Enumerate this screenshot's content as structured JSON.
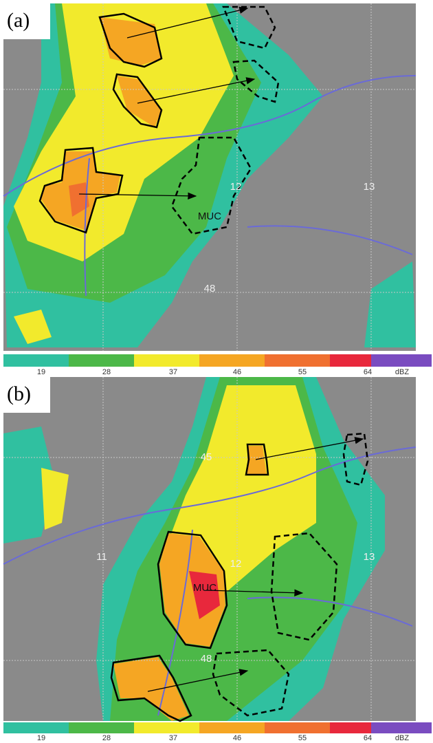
{
  "panels": [
    {
      "label": "(a)",
      "map_labels": [
        "12",
        "13",
        "48",
        "MUC"
      ]
    },
    {
      "label": "(b)",
      "map_labels": [
        "45",
        "11",
        "12",
        "13",
        "MUC",
        "48"
      ]
    }
  ],
  "colorbar": {
    "ticks": [
      "19",
      "28",
      "37",
      "46",
      "55",
      "64"
    ],
    "unit": "dBZ"
  }
}
